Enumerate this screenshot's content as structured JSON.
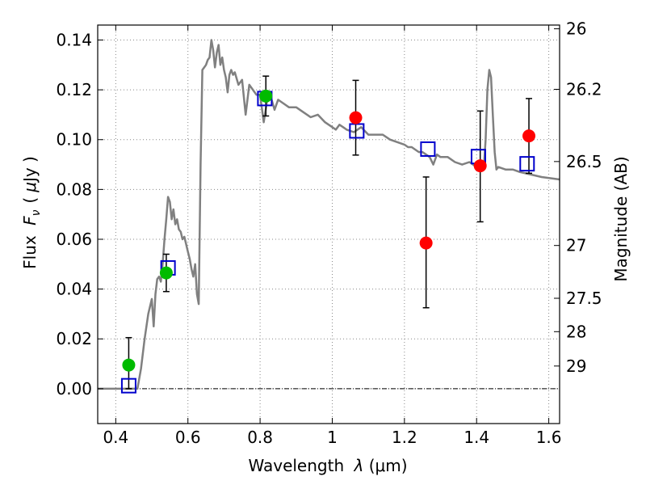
{
  "chart_data": {
    "type": "scatter",
    "title": "",
    "xlabel_text": "Wavelength",
    "xlabel_symbol": "λ",
    "xlabel_unit": "(μm)",
    "ylabel_text": "Flux",
    "ylabel_symbol": "F",
    "ylabel_subscript": "ν",
    "ylabel_unit_open": "(",
    "ylabel_unit_mu": "μ",
    "ylabel_unit_rest": "Jy )",
    "y2label": "Magnitude (AB)",
    "xlim": [
      0.35,
      1.63
    ],
    "ylim": [
      -0.014,
      0.146
    ],
    "grid": true,
    "xticks": [
      0.4,
      0.6,
      0.8,
      1.0,
      1.2,
      1.4,
      1.6
    ],
    "xtick_labels": [
      "0.4",
      "0.6",
      "0.8",
      "1",
      "1.2",
      "1.4",
      "1.6"
    ],
    "yticks": [
      0.0,
      0.02,
      0.04,
      0.06,
      0.08,
      0.1,
      0.12,
      0.14
    ],
    "ytick_labels": [
      "0.00",
      "0.02",
      "0.04",
      "0.06",
      "0.08",
      "0.10",
      "0.12",
      "0.14"
    ],
    "mag_ticks": [
      {
        "label": "26",
        "flux": 0.1445
      },
      {
        "label": "26.2",
        "flux": 0.1202
      },
      {
        "label": "26.5",
        "flux": 0.0912
      },
      {
        "label": "27",
        "flux": 0.0575
      },
      {
        "label": "27.5",
        "flux": 0.0363
      },
      {
        "label": "28",
        "flux": 0.0229
      },
      {
        "label": "29",
        "flux": 0.0091
      }
    ],
    "colors": {
      "model": "#808080",
      "green_points": "#00bb00",
      "red_points": "#ff0000",
      "model_boxes": "#0000cc",
      "errorbars": "#000000",
      "grid": "#888888"
    },
    "series": [
      {
        "kind": "line",
        "x": [
          0.35,
          0.44,
          0.46,
          0.47,
          0.48,
          0.49,
          0.5,
          0.505,
          0.51,
          0.515,
          0.52,
          0.525,
          0.53,
          0.535,
          0.54,
          0.545,
          0.55,
          0.555,
          0.56,
          0.565,
          0.57,
          0.575,
          0.58,
          0.585,
          0.59,
          0.595,
          0.6,
          0.605,
          0.61,
          0.615,
          0.62,
          0.625,
          0.63,
          0.635,
          0.64,
          0.65,
          0.655,
          0.66,
          0.665,
          0.67,
          0.675,
          0.68,
          0.685,
          0.69,
          0.695,
          0.7,
          0.705,
          0.71,
          0.715,
          0.72,
          0.725,
          0.73,
          0.74,
          0.75,
          0.76,
          0.77,
          0.78,
          0.79,
          0.8,
          0.81,
          0.82,
          0.83,
          0.84,
          0.85,
          0.86,
          0.87,
          0.88,
          0.9,
          0.92,
          0.94,
          0.96,
          0.98,
          1.0,
          1.01,
          1.02,
          1.03,
          1.04,
          1.06,
          1.08,
          1.1,
          1.12,
          1.14,
          1.16,
          1.18,
          1.2,
          1.21,
          1.22,
          1.23,
          1.24,
          1.25,
          1.26,
          1.27,
          1.28,
          1.29,
          1.3,
          1.32,
          1.34,
          1.36,
          1.38,
          1.4,
          1.41,
          1.42,
          1.425,
          1.43,
          1.435,
          1.44,
          1.445,
          1.45,
          1.455,
          1.46,
          1.48,
          1.5,
          1.52,
          1.55,
          1.58,
          1.63
        ],
        "y": [
          0.0,
          0.0,
          0.0,
          0.008,
          0.02,
          0.03,
          0.036,
          0.025,
          0.038,
          0.044,
          0.045,
          0.043,
          0.05,
          0.06,
          0.068,
          0.077,
          0.075,
          0.068,
          0.072,
          0.066,
          0.068,
          0.064,
          0.063,
          0.06,
          0.061,
          0.058,
          0.055,
          0.052,
          0.048,
          0.045,
          0.05,
          0.038,
          0.034,
          0.09,
          0.128,
          0.13,
          0.132,
          0.133,
          0.14,
          0.136,
          0.129,
          0.135,
          0.138,
          0.13,
          0.133,
          0.128,
          0.125,
          0.119,
          0.126,
          0.128,
          0.126,
          0.127,
          0.122,
          0.124,
          0.11,
          0.122,
          0.12,
          0.118,
          0.118,
          0.107,
          0.116,
          0.117,
          0.112,
          0.116,
          0.115,
          0.114,
          0.113,
          0.113,
          0.111,
          0.109,
          0.11,
          0.107,
          0.105,
          0.104,
          0.106,
          0.105,
          0.104,
          0.103,
          0.105,
          0.102,
          0.102,
          0.102,
          0.1,
          0.099,
          0.098,
          0.097,
          0.097,
          0.096,
          0.095,
          0.095,
          0.094,
          0.093,
          0.09,
          0.094,
          0.093,
          0.093,
          0.091,
          0.09,
          0.091,
          0.089,
          0.088,
          0.089,
          0.1,
          0.12,
          0.128,
          0.125,
          0.11,
          0.095,
          0.088,
          0.089,
          0.088,
          0.088,
          0.087,
          0.086,
          0.085,
          0.084
        ]
      },
      {
        "kind": "errorbar",
        "name": "",
        "color": "#00bb00",
        "x": [
          0.436,
          0.54,
          0.816
        ],
        "y": [
          0.0095,
          0.0465,
          0.1175
        ],
        "yerr_low": [
          0.0095,
          0.0075,
          0.008
        ],
        "yerr_high": [
          0.011,
          0.0075,
          0.008
        ]
      },
      {
        "kind": "errorbar",
        "name": "",
        "color": "#ff0000",
        "x": [
          1.065,
          1.26,
          1.41,
          1.545
        ],
        "y": [
          0.1088,
          0.0585,
          0.0895,
          0.1015
        ],
        "yerr_low": [
          0.015,
          0.026,
          0.0225,
          0.015
        ],
        "yerr_high": [
          0.015,
          0.0265,
          0.022,
          0.015
        ]
      },
      {
        "kind": "square",
        "name": "",
        "color": "#0000cc",
        "x": [
          0.436,
          0.545,
          0.813,
          1.068,
          1.265,
          1.405,
          1.54
        ],
        "y": [
          0.0012,
          0.0485,
          0.1165,
          0.1035,
          0.0962,
          0.0932,
          0.0903
        ]
      }
    ]
  }
}
